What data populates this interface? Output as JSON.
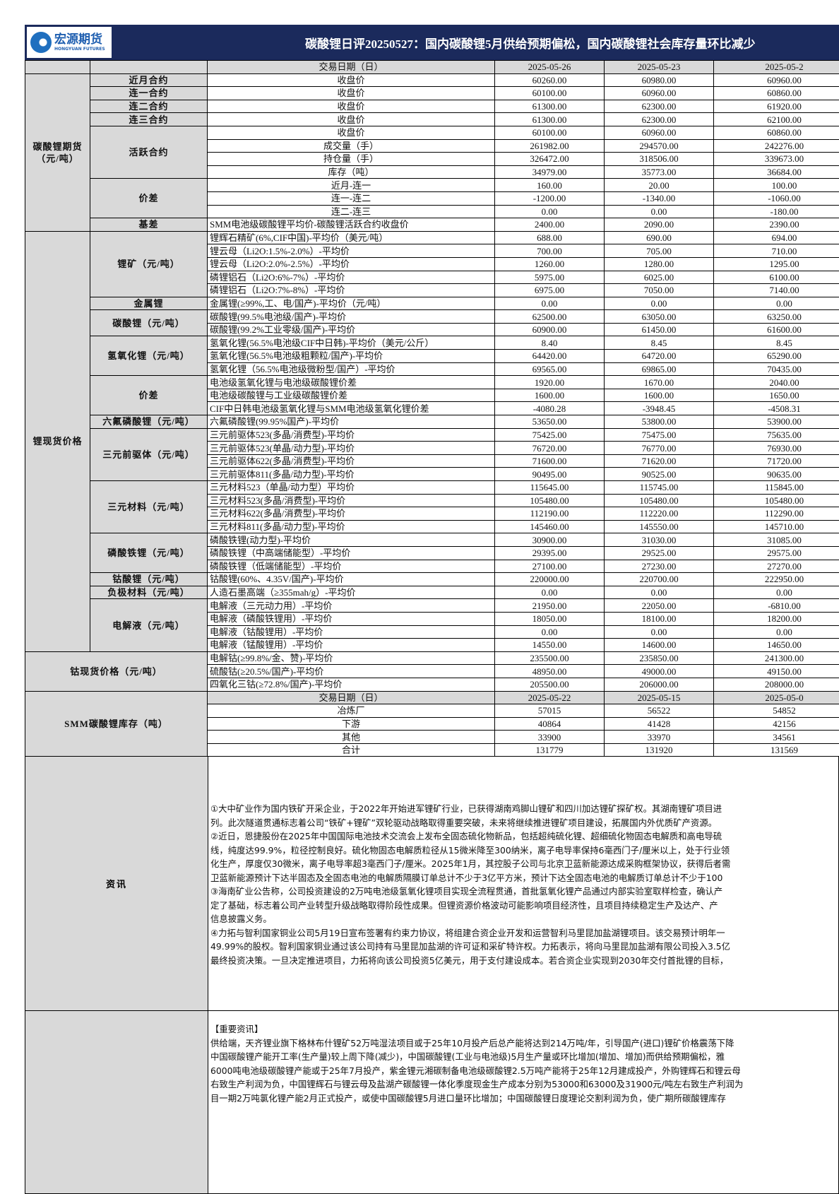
{
  "header": {
    "logo_cn": "宏源期货",
    "logo_en": "HONGYUAN FUTURES",
    "title": "碳酸锂日评20250527：国内碳酸锂5月供给预期偏松，国内碳酸锂社会库存量环比减少"
  },
  "table": {
    "date_label": "交易日期（日）",
    "dates": [
      "2025-05-26",
      "2025-05-23",
      "2025-05-2"
    ],
    "sections": [
      {
        "label": "碳酸锂期货\n（元/吨）",
        "subgroups": [
          {
            "label": "近月合约",
            "rows": [
              {
                "item": "收盘价",
                "center": true,
                "values": [
                  "60260.00",
                  "60980.00",
                  "60960.00"
                ]
              }
            ]
          },
          {
            "label": "连一合约",
            "rows": [
              {
                "item": "收盘价",
                "center": true,
                "values": [
                  "60100.00",
                  "60960.00",
                  "60860.00"
                ]
              }
            ]
          },
          {
            "label": "连二合约",
            "rows": [
              {
                "item": "收盘价",
                "center": true,
                "values": [
                  "61300.00",
                  "62300.00",
                  "61920.00"
                ]
              }
            ]
          },
          {
            "label": "连三合约",
            "rows": [
              {
                "item": "收盘价",
                "center": true,
                "values": [
                  "61300.00",
                  "62300.00",
                  "62100.00"
                ]
              }
            ]
          },
          {
            "label": "活跃合约",
            "rows": [
              {
                "item": "收盘价",
                "center": true,
                "values": [
                  "60100.00",
                  "60960.00",
                  "60860.00"
                ]
              },
              {
                "item": "成交量（手）",
                "center": true,
                "values": [
                  "261982.00",
                  "294570.00",
                  "242276.00"
                ]
              },
              {
                "item": "持仓量（手）",
                "center": true,
                "values": [
                  "326472.00",
                  "318506.00",
                  "339673.00"
                ]
              },
              {
                "item": "库存（吨）",
                "center": true,
                "values": [
                  "34979.00",
                  "35773.00",
                  "36684.00"
                ]
              }
            ]
          },
          {
            "label": "价差",
            "rows": [
              {
                "item": "近月-连一",
                "center": true,
                "values": [
                  "160.00",
                  "20.00",
                  "100.00"
                ]
              },
              {
                "item": "连一-连二",
                "center": true,
                "values": [
                  "-1200.00",
                  "-1340.00",
                  "-1060.00"
                ]
              },
              {
                "item": "连二-连三",
                "center": true,
                "values": [
                  "0.00",
                  "0.00",
                  "-180.00"
                ]
              }
            ]
          },
          {
            "label": "基差",
            "rows": [
              {
                "item": "SMM电池级碳酸锂平均价-碳酸锂活跃合约收盘价",
                "values": [
                  "2400.00",
                  "2090.00",
                  "2390.00"
                ]
              }
            ]
          }
        ]
      },
      {
        "label": "锂现货价格",
        "subgroups": [
          {
            "label": "锂矿（元/吨）",
            "rows": [
              {
                "item": "锂辉石精矿(6%,CIF中国)-平均价（美元/吨）",
                "values": [
                  "688.00",
                  "690.00",
                  "694.00"
                ]
              },
              {
                "item": "锂云母（Li2O:1.5%-2.0%）-平均价",
                "values": [
                  "700.00",
                  "705.00",
                  "710.00"
                ]
              },
              {
                "item": "锂云母（Li2O:2.0%-2.5%）-平均价",
                "values": [
                  "1260.00",
                  "1280.00",
                  "1295.00"
                ]
              },
              {
                "item": "磷锂铝石（Li2O:6%-7%）-平均价",
                "values": [
                  "5975.00",
                  "6025.00",
                  "6100.00"
                ]
              },
              {
                "item": "磷锂铝石（Li2O:7%-8%）-平均价",
                "values": [
                  "6975.00",
                  "7050.00",
                  "7140.00"
                ]
              }
            ]
          },
          {
            "label": "金属锂",
            "rows": [
              {
                "item": "金属锂(≥99%,工、电/国产)-平均价（元/吨）",
                "values": [
                  "0.00",
                  "0.00",
                  "0.00"
                ]
              }
            ]
          },
          {
            "label": "碳酸锂（元/吨）",
            "rows": [
              {
                "item": "碳酸锂(99.5%电池级/国产)-平均价",
                "values": [
                  "62500.00",
                  "63050.00",
                  "63250.00"
                ]
              },
              {
                "item": "碳酸锂(99.2%工业零级/国产)-平均价",
                "values": [
                  "60900.00",
                  "61450.00",
                  "61600.00"
                ]
              }
            ]
          },
          {
            "label": "氢氧化锂（元/吨）",
            "rows": [
              {
                "item": "氢氧化锂(56.5%电池级CIF中日韩)-平均价（美元/公斤）",
                "values": [
                  "8.40",
                  "8.45",
                  "8.45"
                ]
              },
              {
                "item": "氢氧化锂(56.5%电池级粗颗粒/国产)-平均价",
                "values": [
                  "64420.00",
                  "64720.00",
                  "65290.00"
                ]
              },
              {
                "item": "氢氧化锂（56.5%电池级微粉型/国产）-平均价",
                "values": [
                  "69565.00",
                  "69865.00",
                  "70435.00"
                ]
              }
            ]
          },
          {
            "label": "价差",
            "rows": [
              {
                "item": "电池级氢氧化锂与电池级碳酸锂价差",
                "values": [
                  "1920.00",
                  "1670.00",
                  "2040.00"
                ]
              },
              {
                "item": "电池级碳酸锂与工业级碳酸锂价差",
                "values": [
                  "1600.00",
                  "1600.00",
                  "1650.00"
                ]
              },
              {
                "item": "CIF中日韩电池级氢氧化锂与SMM电池级氢氧化锂价差",
                "values": [
                  "-4080.28",
                  "-3948.45",
                  "-4508.31"
                ]
              }
            ]
          },
          {
            "label": "六氟磷酸锂（元/吨）",
            "rows": [
              {
                "item": "六氟磷酸锂(99.95%国产)-平均价",
                "values": [
                  "53650.00",
                  "53800.00",
                  "53900.00"
                ]
              }
            ]
          },
          {
            "label": "三元前驱体（元/吨）",
            "rows": [
              {
                "item": "三元前驱体523(多晶/消费型)-平均价",
                "values": [
                  "75425.00",
                  "75475.00",
                  "75635.00"
                ]
              },
              {
                "item": "三元前驱体523(单晶/动力型)-平均价",
                "values": [
                  "76720.00",
                  "76770.00",
                  "76930.00"
                ]
              },
              {
                "item": "三元前驱体622(多晶/消费型)-平均价",
                "values": [
                  "71600.00",
                  "71620.00",
                  "71720.00"
                ]
              },
              {
                "item": "三元前驱体811(多晶/动力型)-平均价",
                "values": [
                  "90495.00",
                  "90525.00",
                  "90635.00"
                ]
              }
            ]
          },
          {
            "label": "三元材料（元/吨）",
            "rows": [
              {
                "item": "三元材料523（单晶/动力型）平均价",
                "values": [
                  "115645.00",
                  "115745.00",
                  "115845.00"
                ]
              },
              {
                "item": "三元材料523(多晶/消费型)-平均价",
                "values": [
                  "105480.00",
                  "105480.00",
                  "105480.00"
                ]
              },
              {
                "item": "三元材料622(多晶/消费型)-平均价",
                "values": [
                  "112190.00",
                  "112220.00",
                  "112290.00"
                ]
              },
              {
                "item": "三元材料811(多晶/动力型)-平均价",
                "values": [
                  "145460.00",
                  "145550.00",
                  "145710.00"
                ]
              }
            ]
          },
          {
            "label": "磷酸铁锂（元/吨）",
            "rows": [
              {
                "item": "磷酸铁锂(动力型)-平均价",
                "values": [
                  "30900.00",
                  "31030.00",
                  "31085.00"
                ]
              },
              {
                "item": "磷酸铁锂（中高端储能型）-平均价",
                "values": [
                  "29395.00",
                  "29525.00",
                  "29575.00"
                ]
              },
              {
                "item": "磷酸铁锂（低端储能型）-平均价",
                "values": [
                  "27100.00",
                  "27230.00",
                  "27270.00"
                ]
              }
            ]
          },
          {
            "label": "钴酸锂（元/吨）",
            "rows": [
              {
                "item": "钴酸锂(60%、4.35V/国产)-平均价",
                "values": [
                  "220000.00",
                  "220700.00",
                  "222950.00"
                ]
              }
            ]
          },
          {
            "label": "负极材料（元/吨）",
            "rows": [
              {
                "item": "人造石墨高端（≥355mah/g）-平均价",
                "values": [
                  "0.00",
                  "0.00",
                  "0.00"
                ]
              }
            ]
          },
          {
            "label": "电解液（元/吨）",
            "rows": [
              {
                "item": "电解液（三元动力用）-平均价",
                "values": [
                  "21950.00",
                  "22050.00",
                  "-6810.00"
                ]
              },
              {
                "item": "电解液（磷酸铁锂用）-平均价",
                "values": [
                  "18050.00",
                  "18100.00",
                  "18200.00"
                ]
              },
              {
                "item": "电解液（钴酸锂用）-平均价",
                "values": [
                  "0.00",
                  "0.00",
                  "0.00"
                ]
              },
              {
                "item": "电解液（锰酸锂用）-平均价",
                "values": [
                  "14550.00",
                  "14600.00",
                  "14650.00"
                ]
              }
            ]
          }
        ]
      },
      {
        "label": "钴现货价格（元/吨）",
        "merged": true,
        "rows": [
          {
            "item": "电解钴(≥99.8%/金、赞)-平均价",
            "values": [
              "235500.00",
              "235850.00",
              "241300.00"
            ]
          },
          {
            "item": "硫酸钴(≥20.5%/国产)-平均价",
            "values": [
              "48950.00",
              "49000.00",
              "49150.00"
            ]
          },
          {
            "item": "四氧化三钴(≥72.8%/国产)-平均价",
            "values": [
              "205500.00",
              "206000.00",
              "208000.00"
            ]
          }
        ]
      },
      {
        "label": "SMM碳酸锂库存（吨）",
        "merged": true,
        "header": {
          "item": "交易日期（日）",
          "values": [
            "2025-05-22",
            "2025-05-15",
            "2025-05-0"
          ]
        },
        "rows": [
          {
            "item": "冶炼厂",
            "center": true,
            "values": [
              "57015",
              "56522",
              "54852"
            ]
          },
          {
            "item": "下游",
            "center": true,
            "values": [
              "40864",
              "41428",
              "42156"
            ]
          },
          {
            "item": "其他",
            "center": true,
            "values": [
              "33900",
              "33970",
              "34561"
            ]
          },
          {
            "item": "合计",
            "center": true,
            "values": [
              "131779",
              "131920",
              "131569"
            ]
          }
        ]
      }
    ]
  },
  "news": {
    "label": "资讯",
    "lines": [
      "①大中矿业作为国内铁矿开采企业，于2022年开始进军锂矿行业，已获得湖南鸡脚山锂矿和四川加达锂矿探矿权。其湖南锂矿项目进",
      "列。此次隧道贯通标志着公司“铁矿+锂矿”双轮驱动战略取得重要突破，未来将继续推进锂矿项目建设，拓展国内外优质矿产资源。",
      "②近日，恩捷股份在2025年中国国际电池技术交流会上发布全固态硫化物新品，包括超纯硫化锂、超细硫化物固态电解质和高电导硫",
      "线，纯度达99.9%，粒径控制良好。硫化物固态电解质粒径从15微米降至300纳米，离子电导率保持6毫西门子/厘米以上，处于行业领",
      "化生产，厚度仅30微米，离子电导率超3毫西门子/厘米。2025年1月，其控股子公司与北京卫蓝新能源达成采购框架协议，获得后者需",
      "卫蓝新能源预计下达半固态及全固态电池的电解质隔膜订单总计不少于3亿平方米，预计下达全固态电池的电解质订单总计不少于100",
      "③海南矿业公告称，公司投资建设的2万吨电池级氢氧化锂项目实现全流程贯通，首批氢氧化锂产品通过内部实验室取样检查，确认产",
      "定了基础，标志着公司产业转型升级战略取得阶段性成果。但锂资源价格波动可能影响项目经济性，且项目持续稳定生产及达产、产",
      "信息披露义务。",
      "④力拓与智利国家铜业公司5月19日宣布签署有约束力协议，将组建合资企业开发和运营智利马里昆加盐湖锂项目。该交易预计明年一",
      "49.99%的股权。智利国家铜业通过该公司持有马里昆加盐湖的许可证和采矿特许权。力拓表示，将向马里昆加盐湖有限公司投入3.5亿",
      "最终投资决策。一旦决定推进项目，力拓将向该公司投资5亿美元，用于支付建设成本。若合资企业实现到2030年交付首批锂的目标，"
    ]
  },
  "analysis": {
    "lines": [
      "【重要资讯】",
      "供给端，天齐锂业旗下格林布什锂矿52万吨湿法项目或于25年10月投产后总产能将达到214万吨/年，引导国产(进口)锂矿价格震荡下降",
      "中国碳酸锂产能开工率(生产量)较上周下降(减少)，中国碳酸锂(工业与电池级)5月生产量或环比增加(增加、增加)而供给预期偏松，雅",
      "6000吨电池级碳酸锂产能或于25年7月投产，紫金锂元湘碳制备电池级碳酸锂2.5万吨产能将于25年12月建成投产，外购锂辉石和锂云母",
      "右致生产利润为负，中国锂辉石与锂云母及盐湖产碳酸锂一体化季度现金生产成本分别为53000和63000及31900元/吨左右致生产利润为",
      "目一期2万吨氯化锂产能2月正式投产，或使中国碳酸锂5月进口量环比增加；中国碳酸锂日度理论交割利润为负，使广期所碳酸锂库存"
    ]
  }
}
